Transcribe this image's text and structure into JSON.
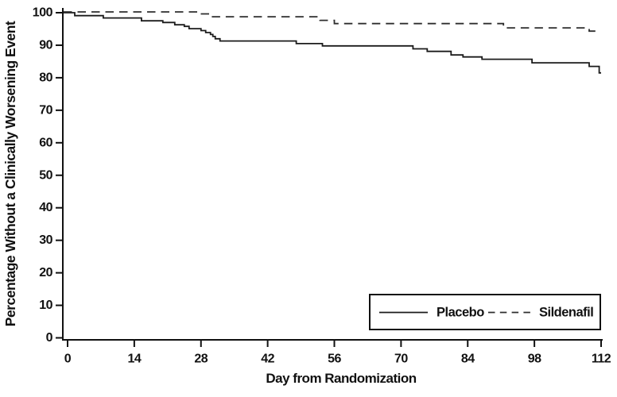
{
  "figure": {
    "background": "#ffffff",
    "axis_color": "#111111",
    "placebo_color": "#1b1b1b",
    "sildenafil_color": "#2e2e2e"
  },
  "chart_data": {
    "type": "line",
    "subtype": "kaplan-meier-step",
    "title": "",
    "xlabel": "Day from Randomization",
    "ylabel": "Percentage Without a Clinically Worsening Event",
    "xlim": [
      0,
      112
    ],
    "ylim": [
      0,
      100
    ],
    "x_ticks": [
      0,
      14,
      28,
      42,
      56,
      70,
      84,
      98,
      112
    ],
    "y_ticks": [
      0,
      10,
      20,
      30,
      40,
      50,
      60,
      70,
      80,
      90,
      100
    ],
    "grid": false,
    "legend_position": "bottom-right-box",
    "series": [
      {
        "name": "Placebo",
        "style": "solid",
        "points": [
          [
            0,
            100
          ],
          [
            1.5,
            99.1
          ],
          [
            7.5,
            98.4
          ],
          [
            15.5,
            97.5
          ],
          [
            20,
            97.0
          ],
          [
            22.5,
            96.3
          ],
          [
            24.5,
            95.8
          ],
          [
            25.5,
            95.1
          ],
          [
            28,
            94.5
          ],
          [
            29,
            93.9
          ],
          [
            30,
            93.3
          ],
          [
            30.5,
            92.7
          ],
          [
            31,
            92.0
          ],
          [
            32,
            91.3
          ],
          [
            48,
            90.5
          ],
          [
            53.5,
            89.8
          ],
          [
            72.5,
            88.9
          ],
          [
            75.5,
            88.1
          ],
          [
            80.5,
            87.0
          ],
          [
            83,
            86.4
          ],
          [
            87,
            85.7
          ],
          [
            97.5,
            84.6
          ],
          [
            109.5,
            83.5
          ],
          [
            111.6,
            81.5
          ],
          [
            112,
            81.5
          ]
        ]
      },
      {
        "name": "Sildenafil",
        "style": "dashed",
        "points": [
          [
            0,
            100
          ],
          [
            27.5,
            99.4
          ],
          [
            30,
            98.5
          ],
          [
            53,
            97.4
          ],
          [
            56,
            96.4
          ],
          [
            91.5,
            95.1
          ],
          [
            109.5,
            94.1
          ],
          [
            111.5,
            94.1
          ]
        ]
      }
    ]
  },
  "legend": {
    "items": [
      {
        "label": "Placebo",
        "style": "solid"
      },
      {
        "label": "Sildenafil",
        "style": "dashed"
      }
    ]
  }
}
